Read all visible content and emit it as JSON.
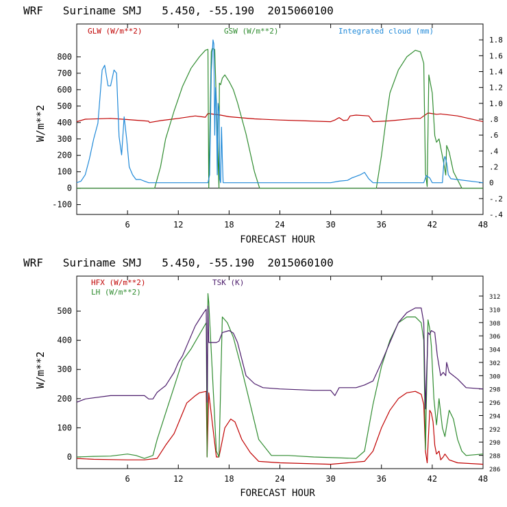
{
  "chart_data": [
    {
      "type": "line",
      "title": "WRF   Suriname SMJ   5.450, -55.190  2015060100",
      "xlabel": "FORECAST HOUR",
      "ylabel": "W/m**2",
      "xlim": [
        0,
        48
      ],
      "ylim": [
        -160,
        1000
      ],
      "y2lim": [
        -0.4,
        2.0
      ],
      "x_ticks": [
        6,
        12,
        18,
        24,
        30,
        36,
        42,
        48
      ],
      "y_ticks": [
        -100,
        0,
        100,
        200,
        300,
        400,
        500,
        600,
        700,
        800
      ],
      "y2_ticks": [
        {
          "value": -0.4,
          "label": "-.4"
        },
        {
          "value": -0.2,
          "label": "-.2"
        },
        {
          "value": 0,
          "label": "0"
        },
        {
          "value": 0.2,
          "label": ".2"
        },
        {
          "value": 0.4,
          "label": ".4"
        },
        {
          "value": 0.6,
          "label": ".6"
        },
        {
          "value": 0.8,
          "label": ".8"
        },
        {
          "value": 1.0,
          "label": "1.0"
        },
        {
          "value": 1.2,
          "label": "1.2"
        },
        {
          "value": 1.4,
          "label": "1.4"
        },
        {
          "value": 1.6,
          "label": "1.6"
        },
        {
          "value": 1.8,
          "label": "1.8"
        }
      ],
      "zero_line": true,
      "legend_placement": "top",
      "series": [
        {
          "name": "GLW (W/m**2)",
          "axis": "left",
          "color": "#c00000",
          "x": [
            0,
            1,
            4,
            6,
            8.5,
            8.6,
            10,
            12,
            14,
            15.2,
            15.5,
            17,
            18,
            21,
            24,
            27,
            30,
            30.5,
            31,
            31.5,
            32,
            32.3,
            33,
            34.5,
            35,
            37,
            40,
            40.6,
            41,
            41.5,
            42.5,
            43,
            45,
            48
          ],
          "y": [
            405,
            420,
            425,
            418,
            408,
            400,
            412,
            425,
            440,
            432,
            455,
            445,
            435,
            422,
            415,
            410,
            405,
            415,
            430,
            412,
            415,
            440,
            445,
            440,
            405,
            410,
            425,
            425,
            440,
            458,
            450,
            452,
            440,
            405
          ]
        },
        {
          "name": "GSW (W/m**2)",
          "axis": "left",
          "color": "#2e8b2e",
          "x": [
            0,
            9.2,
            9.9,
            10.5,
            11.5,
            12.5,
            13.5,
            14.5,
            15.2,
            15.5,
            15.6,
            15.9,
            16.0,
            16.3,
            16.8,
            16.85,
            17.0,
            17.2,
            17.5,
            18.0,
            18.5,
            19,
            20,
            21,
            21.6,
            22,
            35.4,
            36.0,
            36.5,
            37,
            38,
            39,
            40,
            40.6,
            41.0,
            41.2,
            41.4,
            41.6,
            42.0,
            42.3,
            42.5,
            42.8,
            43.3,
            43.6,
            43.7,
            44.0,
            44.5,
            45.5,
            48
          ],
          "y": [
            0,
            0,
            130,
            300,
            470,
            620,
            730,
            800,
            840,
            845,
            0,
            830,
            850,
            845,
            0,
            640,
            630,
            670,
            690,
            650,
            600,
            520,
            330,
            100,
            0,
            0,
            0,
            200,
            400,
            580,
            720,
            800,
            840,
            830,
            760,
            90,
            10,
            690,
            580,
            320,
            280,
            300,
            170,
            80,
            260,
            220,
            100,
            0,
            0
          ]
        },
        {
          "name": "Integrated cloud (mm)",
          "axis": "right",
          "color": "#1e88d8",
          "x": [
            0,
            0.5,
            1.0,
            1.5,
            2.0,
            2.5,
            3.0,
            3.3,
            3.7,
            4.0,
            4.4,
            4.7,
            5.0,
            5.3,
            5.6,
            5.9,
            6.2,
            6.6,
            7.0,
            7.5,
            8.0,
            8.5,
            9,
            15.5,
            15.7,
            15.9,
            16.1,
            16.2,
            16.3,
            16.4,
            16.5,
            16.6,
            16.7,
            16.8,
            16.9,
            17.0,
            17.1,
            17.2,
            17.3,
            18,
            30.0,
            31.0,
            32.0,
            32.5,
            33.0,
            33.5,
            34.0,
            34.5,
            35,
            41.0,
            41.3,
            41.7,
            42.0,
            43.2,
            43.4,
            43.5,
            43.7,
            43.9,
            44.2,
            48
          ],
          "y": [
            0,
            0.02,
            0.1,
            0.3,
            0.55,
            0.75,
            1.42,
            1.48,
            1.22,
            1.22,
            1.42,
            1.38,
            0.58,
            0.35,
            0.83,
            0.55,
            0.2,
            0.1,
            0.04,
            0.04,
            0.02,
            0,
            0,
            0,
            0.1,
            1.4,
            1.8,
            1.75,
            0.6,
            1.2,
            1.0,
            0.1,
            1.0,
            0.9,
            0.05,
            0,
            0.7,
            0.3,
            0,
            0,
            0,
            0.02,
            0.03,
            0.06,
            0.08,
            0.1,
            0.13,
            0.05,
            0,
            0,
            0.09,
            0.06,
            0,
            0,
            0.3,
            0.33,
            0.25,
            0.1,
            0.05,
            0
          ]
        }
      ]
    },
    {
      "type": "line",
      "title": "WRF   Suriname SMJ   5.450, -55.190  2015060100",
      "xlabel": "FORECAST HOUR",
      "ylabel": "W/m**2",
      "xlim": [
        0,
        48
      ],
      "ylim": [
        -40,
        620
      ],
      "y2lim": [
        286,
        315
      ],
      "x_ticks": [
        6,
        12,
        18,
        24,
        30,
        36,
        42,
        48
      ],
      "y_ticks": [
        0,
        100,
        200,
        300,
        400,
        500
      ],
      "y2_ticks": [
        {
          "value": 286,
          "label": "286"
        },
        {
          "value": 288,
          "label": "288"
        },
        {
          "value": 290,
          "label": "290"
        },
        {
          "value": 292,
          "label": "292"
        },
        {
          "value": 294,
          "label": "294"
        },
        {
          "value": 296,
          "label": "296"
        },
        {
          "value": 298,
          "label": "298"
        },
        {
          "value": 300,
          "label": "300"
        },
        {
          "value": 302,
          "label": "302"
        },
        {
          "value": 304,
          "label": "304"
        },
        {
          "value": 306,
          "label": "306"
        },
        {
          "value": 308,
          "label": "308"
        },
        {
          "value": 310,
          "label": "310"
        },
        {
          "value": 312,
          "label": "312"
        }
      ],
      "zero_line": false,
      "legend_placement": "top-left",
      "series": [
        {
          "name": "HFX (W/m**2)",
          "axis": "left",
          "color": "#c00000",
          "x": [
            0,
            2,
            6,
            8,
            9.5,
            10.5,
            11.5,
            12.5,
            13,
            14,
            14.5,
            15.3,
            15.4,
            15.6,
            16.5,
            16.8,
            17.5,
            18.2,
            18.7,
            19.5,
            20.5,
            21.5,
            24,
            30,
            34,
            35,
            36,
            37,
            38,
            39,
            40,
            40.7,
            41.0,
            41.2,
            41.4,
            41.7,
            41.9,
            42.1,
            42.3,
            42.5,
            42.8,
            43.0,
            43.3,
            43.5,
            44.0,
            45,
            48
          ],
          "y": [
            -5,
            -8,
            -10,
            -10,
            -5,
            40,
            80,
            150,
            185,
            210,
            220,
            225,
            0,
            220,
            0,
            0,
            100,
            130,
            120,
            60,
            15,
            -15,
            -20,
            -25,
            -15,
            20,
            100,
            160,
            200,
            220,
            225,
            215,
            180,
            20,
            -20,
            160,
            150,
            120,
            40,
            10,
            20,
            -10,
            0,
            10,
            -10,
            -20,
            -25
          ]
        },
        {
          "name": "LH (W/m**2)",
          "axis": "left",
          "color": "#2e8b2e",
          "x": [
            0,
            2,
            4,
            6,
            7,
            8,
            9,
            9.5,
            10.5,
            11.5,
            12.5,
            13.5,
            14.5,
            15.3,
            15.4,
            15.5,
            15.6,
            16.5,
            16.8,
            17.2,
            17.8,
            18.5,
            19.5,
            20.5,
            21.5,
            23,
            25,
            28,
            33,
            34,
            35,
            36,
            37,
            38,
            39,
            40,
            40.7,
            41.0,
            41.2,
            41.5,
            41.7,
            41.9,
            42.2,
            42.5,
            42.8,
            43.2,
            43.5,
            44.0,
            44.5,
            45,
            45.5,
            46,
            48
          ],
          "y": [
            0,
            2,
            3,
            10,
            5,
            -5,
            5,
            60,
            150,
            240,
            330,
            370,
            420,
            460,
            0,
            560,
            530,
            20,
            0,
            480,
            460,
            410,
            300,
            180,
            60,
            5,
            5,
            0,
            -5,
            20,
            180,
            310,
            400,
            460,
            480,
            480,
            460,
            400,
            25,
            470,
            440,
            380,
            200,
            110,
            200,
            100,
            70,
            160,
            130,
            60,
            20,
            5,
            10
          ]
        },
        {
          "name": "TSK (K)",
          "axis": "right",
          "color": "#4a1a6a",
          "x": [
            0,
            1,
            4,
            8,
            8.5,
            9.0,
            9.5,
            10.0,
            10.5,
            11,
            11.5,
            12.0,
            12.5,
            13.0,
            13.5,
            14.0,
            14.5,
            15.0,
            15.3,
            15.4,
            15.5,
            15.6,
            16.5,
            16.8,
            17.2,
            18.0,
            18.5,
            19,
            20,
            21,
            22,
            24,
            28,
            30,
            30.5,
            31,
            33,
            34,
            35,
            36,
            37,
            38,
            39,
            40,
            40.7,
            41.0,
            41.2,
            41.5,
            41.7,
            41.9,
            42.3,
            42.6,
            43.0,
            43.3,
            43.6,
            43.7,
            44.0,
            45,
            46,
            48
          ],
          "y": [
            296,
            296.5,
            297,
            297,
            296.5,
            296.5,
            297.5,
            298,
            298.5,
            299.5,
            300.5,
            302,
            303,
            304.5,
            306,
            307.5,
            308.5,
            309.5,
            310,
            296,
            310.5,
            305,
            305,
            305.2,
            306.5,
            306.8,
            306.4,
            305,
            300,
            298.8,
            298.2,
            298,
            297.8,
            297.8,
            297,
            298.2,
            298.2,
            298.6,
            299.2,
            302,
            305,
            308,
            309.5,
            310.2,
            310.2,
            308,
            295,
            306.5,
            306.2,
            306.8,
            306.5,
            303,
            300,
            300.5,
            300,
            302,
            300.5,
            299.5,
            298.2,
            298
          ]
        }
      ]
    }
  ]
}
